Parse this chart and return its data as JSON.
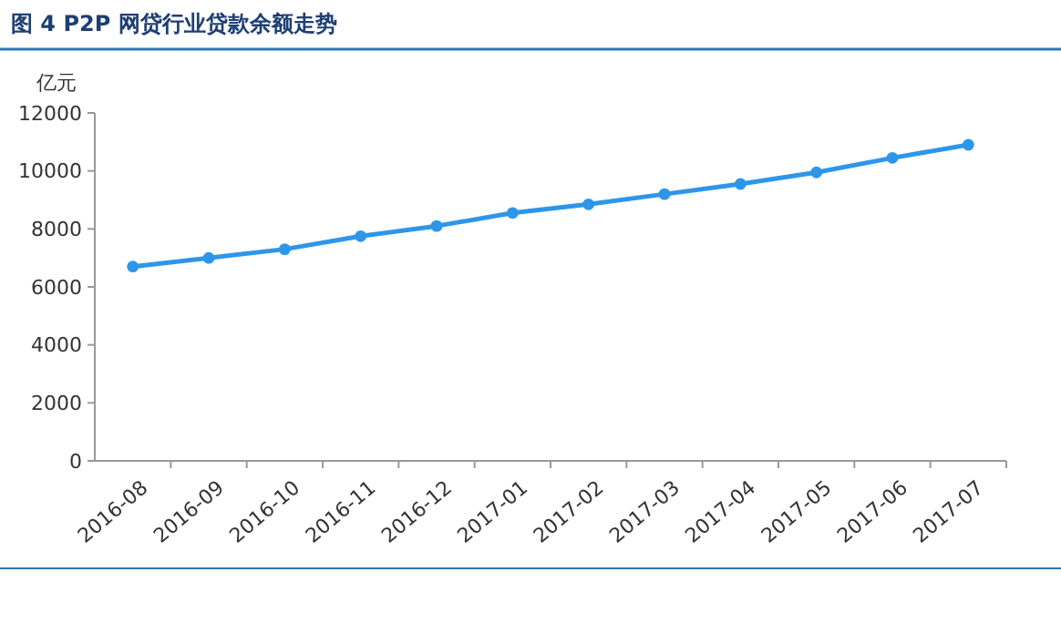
{
  "chart_data": {
    "type": "line",
    "title": "图 4   P2P 网贷行业贷款余额走势",
    "ylabel": "亿元",
    "categories": [
      "2016-08",
      "2016-09",
      "2016-10",
      "2016-11",
      "2016-12",
      "2017-01",
      "2017-02",
      "2017-03",
      "2017-04",
      "2017-05",
      "2017-06",
      "2017-07"
    ],
    "series": [
      {
        "color": "#2e96e8",
        "values": [
          6700,
          7000,
          7300,
          7750,
          8100,
          8550,
          8850,
          9200,
          9550,
          9950,
          10450,
          10900
        ]
      }
    ],
    "ylim": [
      0,
      12000
    ],
    "yticks": [
      0,
      2000,
      4000,
      6000,
      8000,
      10000,
      12000
    ],
    "marker": "circle",
    "line_style": "solid",
    "grid": false
  }
}
